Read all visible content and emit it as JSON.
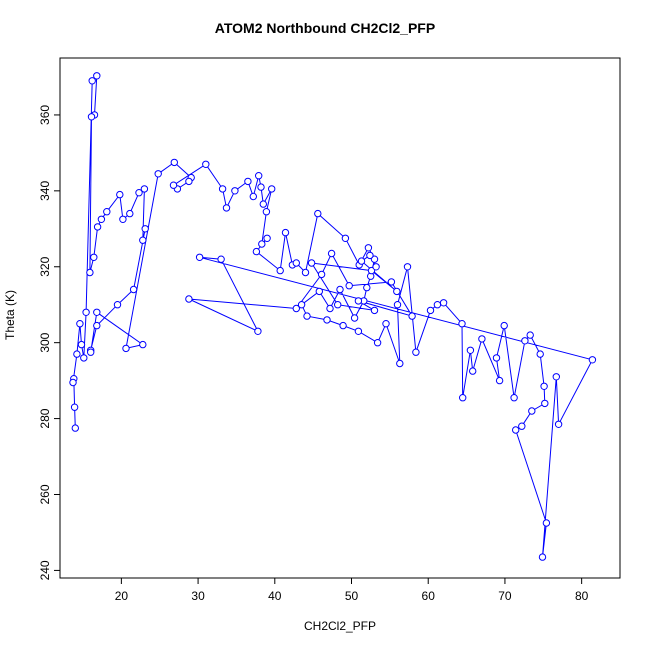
{
  "chart_data": {
    "type": "scatter",
    "title": "ATOM2 Northbound CH2Cl2_PFP",
    "xlabel": "CH2Cl2_PFP",
    "ylabel": "Theta (K)",
    "xlim": [
      12,
      85
    ],
    "ylim": [
      238,
      375
    ],
    "x_ticks": [
      20,
      30,
      40,
      50,
      60,
      70,
      80
    ],
    "y_ticks": [
      240,
      260,
      280,
      300,
      320,
      340,
      360
    ],
    "series_color": "#0000FF",
    "points_connected": true,
    "points": [
      [
        14.0,
        277.5
      ],
      [
        13.9,
        283.0
      ],
      [
        13.8,
        290.5
      ],
      [
        13.7,
        289.5
      ],
      [
        14.2,
        297.0
      ],
      [
        14.6,
        305.0
      ],
      [
        14.8,
        299.5
      ],
      [
        15.1,
        296.0
      ],
      [
        15.4,
        308.0
      ],
      [
        16.2,
        369.0
      ],
      [
        16.8,
        370.3
      ],
      [
        16.5,
        360.0
      ],
      [
        16.1,
        359.5
      ],
      [
        15.9,
        318.5
      ],
      [
        16.4,
        322.5
      ],
      [
        16.9,
        330.5
      ],
      [
        17.4,
        332.5
      ],
      [
        18.1,
        334.5
      ],
      [
        19.8,
        339.0
      ],
      [
        20.2,
        332.5
      ],
      [
        21.1,
        334.0
      ],
      [
        22.3,
        339.5
      ],
      [
        23.0,
        340.5
      ],
      [
        22.8,
        327.0
      ],
      [
        23.1,
        330.0
      ],
      [
        21.6,
        314.0
      ],
      [
        19.5,
        310.0
      ],
      [
        16.8,
        304.5
      ],
      [
        16.0,
        298.0
      ],
      [
        16.0,
        297.5
      ],
      [
        16.8,
        308.0
      ],
      [
        22.8,
        299.5
      ],
      [
        20.6,
        298.5
      ],
      [
        24.8,
        344.5
      ],
      [
        26.9,
        347.5
      ],
      [
        29.1,
        343.5
      ],
      [
        28.8,
        342.5
      ],
      [
        27.3,
        340.5
      ],
      [
        26.8,
        341.5
      ],
      [
        31.0,
        347.0
      ],
      [
        33.2,
        340.5
      ],
      [
        33.7,
        335.5
      ],
      [
        34.8,
        340.0
      ],
      [
        36.5,
        342.5
      ],
      [
        37.2,
        338.5
      ],
      [
        37.9,
        344.0
      ],
      [
        38.2,
        341.0
      ],
      [
        38.5,
        336.5
      ],
      [
        39.6,
        340.5
      ],
      [
        38.9,
        334.5
      ],
      [
        38.3,
        326.0
      ],
      [
        39.0,
        327.5
      ],
      [
        37.6,
        324.0
      ],
      [
        40.7,
        319.0
      ],
      [
        41.4,
        329.0
      ],
      [
        42.3,
        320.5
      ],
      [
        42.8,
        321.0
      ],
      [
        44.0,
        318.5
      ],
      [
        45.6,
        334.0
      ],
      [
        49.2,
        327.5
      ],
      [
        51.0,
        320.5
      ],
      [
        52.2,
        325.0
      ],
      [
        53.0,
        322.0
      ],
      [
        52.5,
        317.5
      ],
      [
        52.0,
        314.5
      ],
      [
        51.6,
        311.0
      ],
      [
        50.4,
        306.5
      ],
      [
        48.5,
        314.0
      ],
      [
        47.2,
        309.0
      ],
      [
        45.8,
        313.5
      ],
      [
        43.5,
        310.0
      ],
      [
        44.2,
        307.0
      ],
      [
        46.8,
        306.0
      ],
      [
        48.9,
        304.5
      ],
      [
        50.9,
        303.0
      ],
      [
        53.4,
        300.0
      ],
      [
        54.5,
        305.0
      ],
      [
        56.3,
        294.5
      ],
      [
        56.0,
        310.0
      ],
      [
        57.3,
        320.0
      ],
      [
        58.4,
        297.5
      ],
      [
        60.3,
        308.5
      ],
      [
        61.2,
        310.0
      ],
      [
        62.0,
        310.5
      ],
      [
        64.4,
        305.0
      ],
      [
        64.5,
        285.5
      ],
      [
        65.5,
        298.0
      ],
      [
        65.8,
        292.5
      ],
      [
        67.0,
        301.0
      ],
      [
        69.3,
        290.0
      ],
      [
        68.9,
        296.0
      ],
      [
        69.9,
        304.5
      ],
      [
        71.2,
        285.5
      ],
      [
        72.6,
        300.5
      ],
      [
        73.3,
        302.0
      ],
      [
        74.6,
        297.0
      ],
      [
        75.1,
        288.5
      ],
      [
        75.2,
        284.0
      ],
      [
        73.5,
        282.0
      ],
      [
        72.2,
        278.0
      ],
      [
        71.4,
        277.0
      ],
      [
        75.4,
        252.5
      ],
      [
        74.9,
        243.5
      ],
      [
        76.7,
        291.0
      ],
      [
        77.0,
        278.5
      ],
      [
        81.4,
        295.5
      ],
      [
        30.2,
        322.5
      ],
      [
        33.0,
        322.0
      ],
      [
        37.8,
        303.0
      ],
      [
        28.8,
        311.5
      ],
      [
        42.8,
        309.0
      ],
      [
        46.1,
        318.0
      ],
      [
        47.4,
        323.5
      ],
      [
        49.7,
        315.0
      ],
      [
        55.2,
        316.0
      ],
      [
        57.9,
        307.0
      ],
      [
        50.9,
        311.0
      ],
      [
        53.0,
        308.5
      ],
      [
        48.2,
        310.0
      ],
      [
        44.8,
        321.0
      ],
      [
        52.6,
        319.0
      ],
      [
        55.9,
        313.5
      ],
      [
        51.3,
        321.5
      ],
      [
        52.4,
        323.0
      ],
      [
        53.2,
        320.0
      ]
    ]
  }
}
